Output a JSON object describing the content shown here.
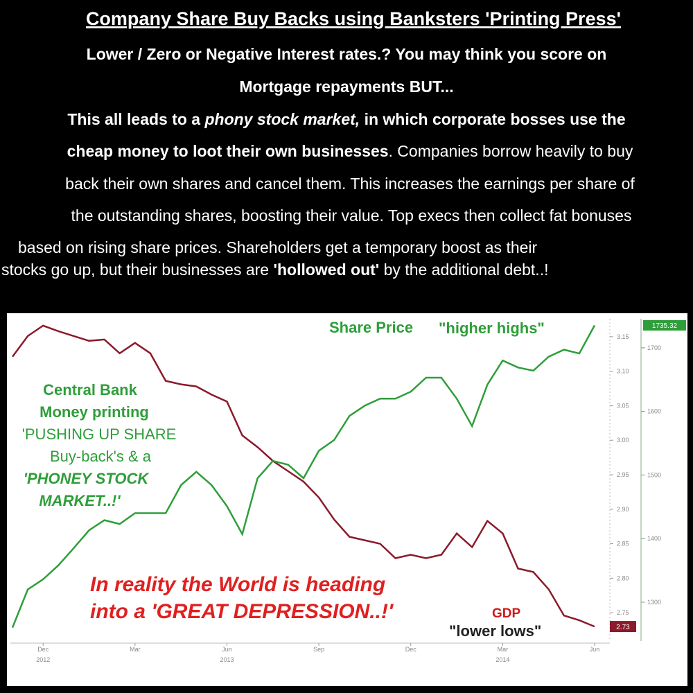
{
  "header": {
    "title": "Company Share Buy Backs using Banksters 'Printing Press'",
    "lines": [
      [
        {
          "text": "Lower / Zero or Negative Interest rates.? You may think you score on",
          "style": "bold"
        }
      ],
      [
        {
          "text": "Mortgage repayments BUT...",
          "style": "bold"
        }
      ],
      [
        {
          "text": "This all leads to a ",
          "style": "bold"
        },
        {
          "text": "phony stock market,",
          "style": "bold italic"
        },
        {
          "text": " in which corporate bosses use the",
          "style": "bold"
        }
      ],
      [
        {
          "text": "cheap money to loot their own businesses",
          "style": "bold"
        },
        {
          "text": ". Companies borrow heavily to buy",
          "style": "normal"
        }
      ],
      [
        {
          "text": "back their own shares and cancel them. This increases the earnings per share of",
          "style": "normal"
        }
      ],
      [
        {
          "text": "the outstanding shares, boosting their value. Top execs then collect fat bonuses",
          "style": "normal"
        }
      ],
      [
        {
          "text": "based on rising share prices. Shareholders get a temporary boost as their",
          "style": "normal"
        }
      ],
      [
        {
          "text": "stocks  go up, but their businesses are ",
          "style": "normal"
        },
        {
          "text": "'hollowed out'",
          "style": "bold"
        },
        {
          "text": " by the additional debt..!",
          "style": "normal"
        }
      ]
    ]
  },
  "chart_data": {
    "type": "line",
    "categories": [
      null,
      null,
      "Dec",
      null,
      null,
      null,
      null,
      null,
      "Mar",
      null,
      null,
      null,
      null,
      null,
      "Jun",
      null,
      null,
      null,
      null,
      null,
      "Sep",
      null,
      null,
      null,
      null,
      null,
      "Dec",
      null,
      null,
      null,
      null,
      null,
      "Mar",
      null,
      null,
      null,
      null,
      null,
      "Jun"
    ],
    "category_years": [
      null,
      null,
      "2012",
      null,
      null,
      null,
      null,
      null,
      null,
      null,
      null,
      null,
      null,
      null,
      "2013",
      null,
      null,
      null,
      null,
      null,
      null,
      null,
      null,
      null,
      null,
      null,
      null,
      null,
      null,
      null,
      null,
      null,
      "2014",
      null,
      null,
      null,
      null,
      null,
      null
    ],
    "series": [
      {
        "name": "GDP",
        "color": "#8b1a2b",
        "values": [
          3.121,
          3.151,
          3.166,
          3.158,
          3.151,
          3.144,
          3.146,
          3.126,
          3.141,
          3.126,
          3.086,
          3.081,
          3.078,
          3.066,
          3.056,
          3.007,
          2.99,
          2.97,
          2.955,
          2.94,
          2.917,
          2.885,
          2.86,
          2.855,
          2.85,
          2.829,
          2.834,
          2.829,
          2.834,
          2.865,
          2.845,
          2.883,
          2.865,
          2.814,
          2.809,
          2.784,
          2.746,
          2.739,
          2.73
        ]
      },
      {
        "name": "Share Price",
        "color": "#2e9e3a",
        "axis": "y2",
        "values": [
          1260,
          1320,
          1336,
          1358,
          1385,
          1413,
          1429,
          1423,
          1440,
          1440,
          1440,
          1484,
          1505,
          1484,
          1451,
          1407,
          1495,
          1522,
          1516,
          1495,
          1538,
          1555,
          1593,
          1609,
          1620,
          1620,
          1631,
          1653,
          1653,
          1620,
          1577,
          1642,
          1680,
          1669,
          1664,
          1686,
          1697,
          1691,
          1735.32
        ]
      }
    ],
    "ylim": [
      2.71,
      3.18
    ],
    "yticks": [
      2.75,
      {
        "value": 2.8,
        "label": "2.80"
      },
      2.85,
      {
        "value": 2.9,
        "label": "2.90"
      },
      2.95,
      {
        "value": 3.0,
        "label": "3.00"
      },
      3.05,
      {
        "value": 3.1,
        "label": "3.10"
      },
      3.15
    ],
    "y2lim": [
      1240,
      1750
    ],
    "y2ticks": [
      1300,
      1400,
      1500,
      1600,
      1700
    ],
    "annotations": [
      {
        "text": "\"higher highs\"",
        "style": "bold",
        "color": "#2e9e3a"
      },
      {
        "text": "Central Bank",
        "style": "bold",
        "color": "#2e9e3a"
      },
      {
        "text": "Money printing",
        "style": "bold",
        "color": "#2e9e3a"
      },
      {
        "text": "'PUSHING UP SHARE",
        "style": "normal",
        "color": "#2e9e3a"
      },
      {
        "text": "Buy-back's & a",
        "style": "normal",
        "color": "#2e9e3a"
      },
      {
        "text": "'PHONEY STOCK",
        "style": "bold italic",
        "color": "#2e9e3a"
      },
      {
        "text": "MARKET..!'",
        "style": "bold italic",
        "color": "#2e9e3a"
      },
      {
        "text": "In reality the World is heading",
        "style": "bold italic",
        "color": "#e02020"
      },
      {
        "text": "into a 'GREAT DEPRESSION..!'",
        "style": "bold italic",
        "color": "#e02020"
      },
      {
        "text": "\"lower lows\"",
        "style": "bold",
        "color": "#222222"
      }
    ]
  }
}
